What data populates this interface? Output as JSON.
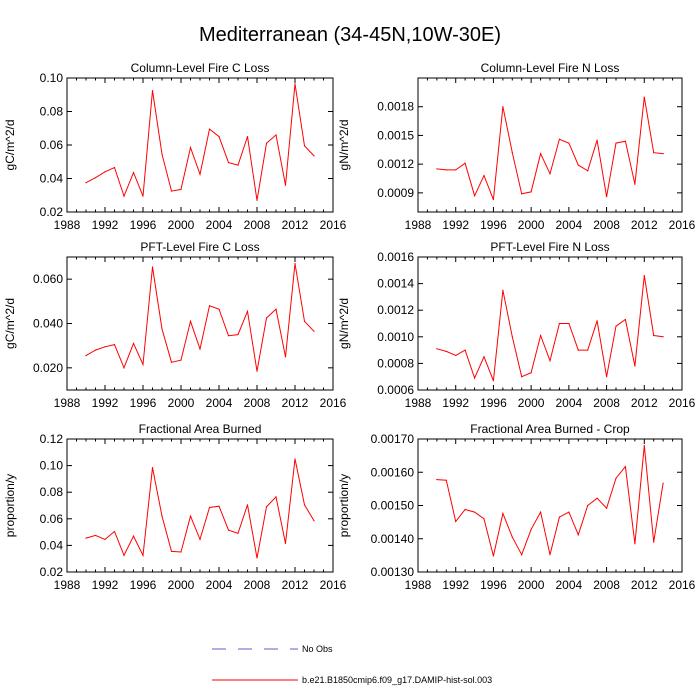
{
  "figure": {
    "title": "Mediterranean (34-45N,10W-30E)"
  },
  "legend": [
    {
      "label": "No Obs",
      "color": "#6a5acd",
      "style": "dashed"
    },
    {
      "label": "b.e21.B1850cmip6.f09_g17.DAMIP-hist-sol.003",
      "color": "#ff0000",
      "style": "solid"
    }
  ],
  "chart_data": [
    {
      "type": "line",
      "title": "Column-Level Fire C Loss",
      "ylabel": "gC/m^2/d",
      "xlim": [
        1988,
        2016
      ],
      "ylim": [
        0.02,
        0.1
      ],
      "xticks": [
        1988,
        1992,
        1996,
        2000,
        2004,
        2008,
        2012,
        2016
      ],
      "xtick_labels": [
        "1988",
        "1992",
        "1996",
        "2000",
        "2004",
        "2008",
        "2012",
        "2016"
      ],
      "yticks": [
        0.02,
        0.04,
        0.06,
        0.08,
        0.1
      ],
      "ytick_labels": [
        "0.02",
        "0.04",
        "0.06",
        "0.08",
        "0.10"
      ],
      "x": [
        1990,
        1991,
        1992,
        1993,
        1994,
        1995,
        1996,
        1997,
        1998,
        1999,
        2000,
        2001,
        2002,
        2003,
        2004,
        2005,
        2006,
        2007,
        2008,
        2009,
        2010,
        2011,
        2012,
        2013,
        2014
      ],
      "series": [
        {
          "color": "#ff0000",
          "values": [
            0.0375,
            0.0405,
            0.044,
            0.0465,
            0.0295,
            0.0435,
            0.0295,
            0.0925,
            0.0545,
            0.0325,
            0.0335,
            0.0585,
            0.0425,
            0.0695,
            0.065,
            0.0495,
            0.048,
            0.065,
            0.027,
            0.061,
            0.066,
            0.036,
            0.0965,
            0.0595,
            0.0535
          ]
        }
      ]
    },
    {
      "type": "line",
      "title": "Column-Level Fire N Loss",
      "ylabel": "gN/m^2/d",
      "xlim": [
        1988,
        2016
      ],
      "ylim": [
        0.0007,
        0.0021
      ],
      "xticks": [
        1988,
        1992,
        1996,
        2000,
        2004,
        2008,
        2012,
        2016
      ],
      "xtick_labels": [
        "1988",
        "1992",
        "1996",
        "2000",
        "2004",
        "2008",
        "2012",
        "2016"
      ],
      "yticks": [
        0.0009,
        0.0012,
        0.0015,
        0.0018
      ],
      "ytick_labels": [
        "0.0009",
        "0.0012",
        "0.0015",
        "0.0018"
      ],
      "x": [
        1990,
        1991,
        1992,
        1993,
        1994,
        1995,
        1996,
        1997,
        1998,
        1999,
        2000,
        2001,
        2002,
        2003,
        2004,
        2005,
        2006,
        2007,
        2008,
        2009,
        2010,
        2011,
        2012,
        2013,
        2014
      ],
      "series": [
        {
          "color": "#ff0000",
          "values": [
            0.00115,
            0.00114,
            0.00114,
            0.00121,
            0.00087,
            0.00108,
            0.00083,
            0.0018,
            0.00132,
            0.00089,
            0.00091,
            0.00131,
            0.0011,
            0.00146,
            0.00142,
            0.00119,
            0.00113,
            0.00145,
            0.00086,
            0.00142,
            0.00144,
            0.00099,
            0.0019,
            0.00132,
            0.00131
          ]
        }
      ]
    },
    {
      "type": "line",
      "title": "PFT-Level Fire C Loss",
      "ylabel": "gC/m^2/d",
      "xlim": [
        1988,
        2016
      ],
      "ylim": [
        0.01,
        0.07
      ],
      "xticks": [
        1988,
        1992,
        1996,
        2000,
        2004,
        2008,
        2012,
        2016
      ],
      "xtick_labels": [
        "1988",
        "1992",
        "1996",
        "2000",
        "2004",
        "2008",
        "2012",
        "2016"
      ],
      "yticks": [
        0.02,
        0.04,
        0.06
      ],
      "ytick_labels": [
        "0.020",
        "0.040",
        "0.060"
      ],
      "x": [
        1990,
        1991,
        1992,
        1993,
        1994,
        1995,
        1996,
        1997,
        1998,
        1999,
        2000,
        2001,
        2002,
        2003,
        2004,
        2005,
        2006,
        2007,
        2008,
        2009,
        2010,
        2011,
        2012,
        2013,
        2014
      ],
      "series": [
        {
          "color": "#ff0000",
          "values": [
            0.0255,
            0.028,
            0.0295,
            0.0305,
            0.02,
            0.031,
            0.0215,
            0.0655,
            0.0375,
            0.0225,
            0.0235,
            0.041,
            0.0285,
            0.048,
            0.0465,
            0.0345,
            0.035,
            0.0455,
            0.0185,
            0.0425,
            0.0465,
            0.025,
            0.067,
            0.041,
            0.0365
          ]
        }
      ]
    },
    {
      "type": "line",
      "title": "PFT-Level Fire N Loss",
      "ylabel": "gN/m^2/d",
      "xlim": [
        1988,
        2016
      ],
      "ylim": [
        0.0006,
        0.0016
      ],
      "xticks": [
        1988,
        1992,
        1996,
        2000,
        2004,
        2008,
        2012,
        2016
      ],
      "xtick_labels": [
        "1988",
        "1992",
        "1996",
        "2000",
        "2004",
        "2008",
        "2012",
        "2016"
      ],
      "yticks": [
        0.0006,
        0.0008,
        0.001,
        0.0012,
        0.0014,
        0.0016
      ],
      "ytick_labels": [
        "0.0006",
        "0.0008",
        "0.0010",
        "0.0012",
        "0.0014",
        "0.0016"
      ],
      "x": [
        1990,
        1991,
        1992,
        1993,
        1994,
        1995,
        1996,
        1997,
        1998,
        1999,
        2000,
        2001,
        2002,
        2003,
        2004,
        2005,
        2006,
        2007,
        2008,
        2009,
        2010,
        2011,
        2012,
        2013,
        2014
      ],
      "series": [
        {
          "color": "#ff0000",
          "values": [
            0.00091,
            0.00089,
            0.00086,
            0.0009,
            0.00069,
            0.00085,
            0.00067,
            0.00135,
            0.001,
            0.0007,
            0.00073,
            0.00101,
            0.00082,
            0.0011,
            0.0011,
            0.0009,
            0.0009,
            0.00112,
            0.0007,
            0.00108,
            0.00113,
            0.00078,
            0.00146,
            0.00101,
            0.001
          ]
        }
      ]
    },
    {
      "type": "line",
      "title": "Fractional Area Burned",
      "ylabel": "proportion/y",
      "xlim": [
        1988,
        2016
      ],
      "ylim": [
        0.02,
        0.12
      ],
      "xticks": [
        1988,
        1992,
        1996,
        2000,
        2004,
        2008,
        2012,
        2016
      ],
      "xtick_labels": [
        "1988",
        "1992",
        "1996",
        "2000",
        "2004",
        "2008",
        "2012",
        "2016"
      ],
      "yticks": [
        0.02,
        0.04,
        0.06,
        0.08,
        0.1,
        0.12
      ],
      "ytick_labels": [
        "0.02",
        "0.04",
        "0.06",
        "0.08",
        "0.10",
        "0.12"
      ],
      "x": [
        1990,
        1991,
        1992,
        1993,
        1994,
        1995,
        1996,
        1997,
        1998,
        1999,
        2000,
        2001,
        2002,
        2003,
        2004,
        2005,
        2006,
        2007,
        2008,
        2009,
        2010,
        2011,
        2012,
        2013,
        2014
      ],
      "series": [
        {
          "color": "#ff0000",
          "values": [
            0.0455,
            0.0475,
            0.0445,
            0.0505,
            0.0325,
            0.047,
            0.0325,
            0.0985,
            0.062,
            0.0355,
            0.035,
            0.062,
            0.0445,
            0.0685,
            0.0695,
            0.0515,
            0.049,
            0.0705,
            0.0305,
            0.069,
            0.0765,
            0.0415,
            0.105,
            0.0705,
            0.0585
          ]
        }
      ]
    },
    {
      "type": "line",
      "title": "Fractional Area Burned - Crop",
      "ylabel": "proportion/y",
      "xlim": [
        1988,
        2016
      ],
      "ylim": [
        0.0013,
        0.0017
      ],
      "xticks": [
        1988,
        1992,
        1996,
        2000,
        2004,
        2008,
        2012,
        2016
      ],
      "xtick_labels": [
        "1988",
        "1992",
        "1996",
        "2000",
        "2004",
        "2008",
        "2012",
        "2016"
      ],
      "yticks": [
        0.0013,
        0.0014,
        0.0015,
        0.0016,
        0.0017
      ],
      "ytick_labels": [
        "0.00130",
        "0.00140",
        "0.00150",
        "0.00160",
        "0.00170"
      ],
      "x": [
        1990,
        1991,
        1992,
        1993,
        1994,
        1995,
        1996,
        1997,
        1998,
        1999,
        2000,
        2001,
        2002,
        2003,
        2004,
        2005,
        2006,
        2007,
        2008,
        2009,
        2010,
        2011,
        2012,
        2013,
        2014
      ],
      "series": [
        {
          "color": "#ff0000",
          "values": [
            0.001578,
            0.001576,
            0.001452,
            0.001488,
            0.00148,
            0.00146,
            0.001348,
            0.001476,
            0.001405,
            0.001352,
            0.001428,
            0.00148,
            0.001352,
            0.001465,
            0.00148,
            0.001412,
            0.0015,
            0.001522,
            0.001492,
            0.001582,
            0.001617,
            0.001385,
            0.00168,
            0.00139,
            0.001567
          ]
        }
      ]
    }
  ]
}
